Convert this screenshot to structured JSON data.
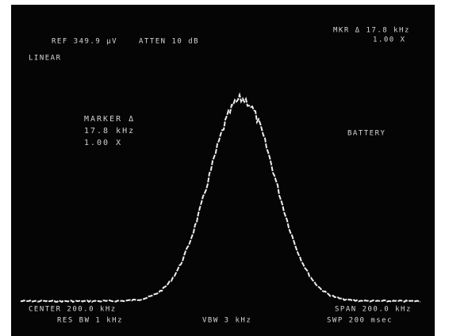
{
  "header": {
    "reference": "REF 349.9 µV",
    "attenuation": "ATTEN 10 dB",
    "marker_readout": [
      "MKR Δ 17.8 kHz",
      "1.00 X"
    ],
    "scale": "LINEAR"
  },
  "marker_box": {
    "title": "MARKER Δ",
    "frequency": "17.8 kHz",
    "ratio": "1.00 X"
  },
  "status": "BATTERY",
  "footer": {
    "center": "CENTER 200.0 kHz",
    "span": "SPAN 200.0 kHz",
    "res_bw": "RES BW 1 kHz",
    "vbw": "VBW 3 kHz",
    "sweep": "SWP 200 msec"
  }
}
